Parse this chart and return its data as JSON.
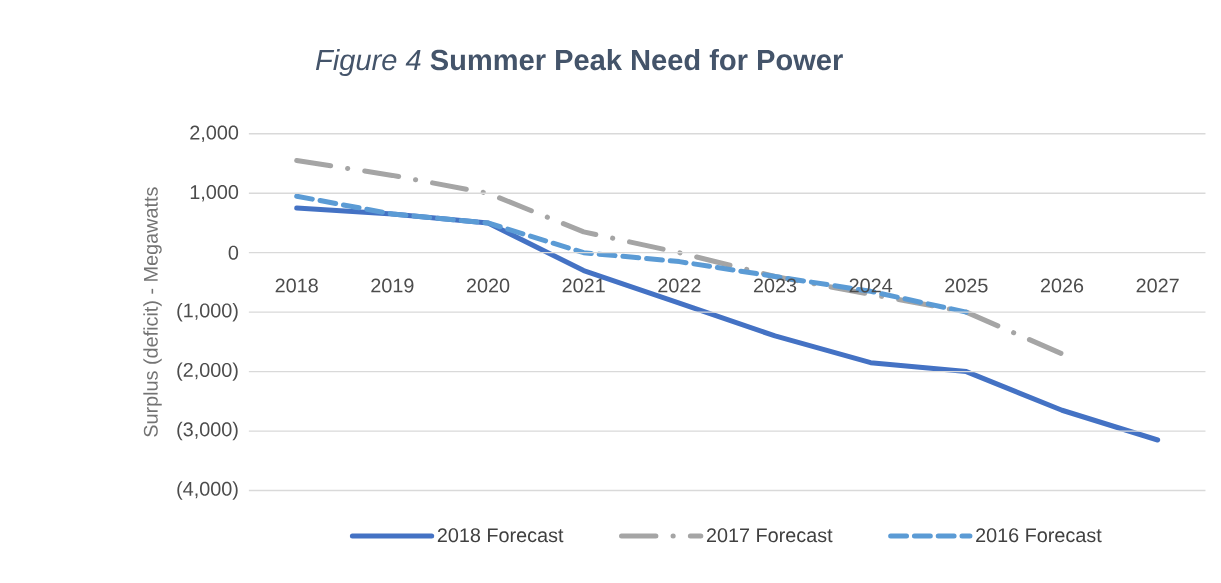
{
  "chart_data": {
    "type": "line",
    "title": "*Figure 4*  **Summer Peak Need for Power**",
    "ylabel": "Surplus (deficit) - Megawatts",
    "categories": [
      "2018",
      "2019",
      "2020",
      "2021",
      "2022",
      "2023",
      "2024",
      "2025",
      "2026",
      "2027"
    ],
    "series": [
      {
        "name": "2018 Forecast",
        "color": "#4472c4",
        "line_style": "solid",
        "values": [
          750,
          650,
          500,
          -300,
          -850,
          -1400,
          -1850,
          -2000,
          -2650,
          -3150
        ]
      },
      {
        "name": "2017 Forecast",
        "color": "#a5a5a5",
        "line_style": "dashdot",
        "values": [
          1550,
          1300,
          1000,
          350,
          0,
          -400,
          -700,
          -1000,
          -1700,
          null
        ]
      },
      {
        "name": "2016 Forecast",
        "color": "#5b9bd5",
        "line_style": "dashed",
        "values": [
          950,
          650,
          500,
          0,
          -150,
          -400,
          -650,
          -1000,
          null,
          null
        ]
      }
    ],
    "ylim": [
      -4000,
      2000
    ],
    "yticks": [
      {
        "value": 2000,
        "label": "2,000"
      },
      {
        "value": 1000,
        "label": "1,000"
      },
      {
        "value": 0,
        "label": "0"
      },
      {
        "value": -1000,
        "label": "(1,000)"
      },
      {
        "value": -2000,
        "label": "(2,000)"
      },
      {
        "value": -3000,
        "label": "(3,000)"
      },
      {
        "value": -4000,
        "label": "(4,000)"
      }
    ],
    "grid": "y",
    "legend": "bottom"
  }
}
